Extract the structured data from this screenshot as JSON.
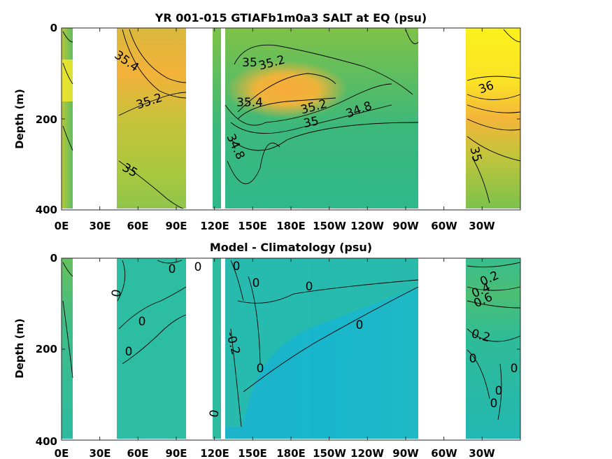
{
  "chart_data": [
    {
      "type": "heatmap",
      "title": "YR 001-015 GTIAFb1m0a3 SALT at EQ (psu)",
      "ylabel": "Depth (m)",
      "xlabel": "",
      "xticks": [
        "0E",
        "30E",
        "60E",
        "90E",
        "120E",
        "150E",
        "180E",
        "150W",
        "120W",
        "90W",
        "60W",
        "30W"
      ],
      "yticks": [
        "0",
        "200",
        "400"
      ],
      "xlim": [
        0,
        360
      ],
      "ylim": [
        0,
        400
      ],
      "grid": false,
      "colors": {
        "low": "#1fb3b0",
        "mid": "#3cb87b",
        "green_yellow": "#a5c83a",
        "orange": "#f6b43a",
        "yellow": "#fbf01d"
      },
      "contour_labels": [
        {
          "text": "35.4",
          "lon": 45,
          "depth": 90
        },
        {
          "text": "35.2",
          "lon": 60,
          "depth": 160
        },
        {
          "text": "35",
          "lon": 45,
          "depth": 315
        },
        {
          "text": "35",
          "lon": 134,
          "depth": 75
        },
        {
          "text": "35.2",
          "lon": 149,
          "depth": 80
        },
        {
          "text": "35.4",
          "lon": 134,
          "depth": 160
        },
        {
          "text": "35.2",
          "lon": 180,
          "depth": 175
        },
        {
          "text": "35",
          "lon": 177,
          "depth": 205
        },
        {
          "text": "34.8",
          "lon": 210,
          "depth": 185
        },
        {
          "text": "34.8",
          "lon": 125,
          "depth": 270
        },
        {
          "text": "36",
          "lon": 300,
          "depth": 130
        },
        {
          "text": "35",
          "lon": 291,
          "depth": 280
        }
      ]
    },
    {
      "type": "heatmap",
      "title": "Model - Climatology (psu)",
      "ylabel": "Depth (m)",
      "xlabel": "",
      "xticks": [
        "0E",
        "30E",
        "60E",
        "90E",
        "120E",
        "150E",
        "180E",
        "150W",
        "120W",
        "90W",
        "60W",
        "30W"
      ],
      "yticks": [
        "0",
        "200",
        "400"
      ],
      "xlim": [
        0,
        360
      ],
      "ylim": [
        0,
        400
      ],
      "grid": false,
      "colors": {
        "low": "#15b9c7",
        "mid": "#2dbd9c",
        "positive": "#54bf6d"
      },
      "contour_labels": [
        {
          "text": "0",
          "lon": 78,
          "depth": 25
        },
        {
          "text": "0",
          "lon": 32,
          "depth": 75
        },
        {
          "text": "0",
          "lon": 47,
          "depth": 140
        },
        {
          "text": "0",
          "lon": 40,
          "depth": 205
        },
        {
          "text": "0",
          "lon": 110,
          "depth": 15
        },
        {
          "text": "0",
          "lon": 124,
          "depth": 55
        },
        {
          "text": "0",
          "lon": 155,
          "depth": 60
        },
        {
          "text": "0",
          "lon": 195,
          "depth": 65
        },
        {
          "text": "0",
          "lon": 183,
          "depth": 145
        },
        {
          "text": "0",
          "lon": 136,
          "depth": 240
        },
        {
          "text": "0",
          "lon": 114,
          "depth": 340
        },
        {
          "text": "-0.2",
          "lon": 120,
          "depth": 195
        },
        {
          "text": "0.2",
          "lon": 300,
          "depth": 50
        },
        {
          "text": "0.4",
          "lon": 300,
          "depth": 80
        },
        {
          "text": "0.6",
          "lon": 300,
          "depth": 97
        },
        {
          "text": "0.2",
          "lon": 290,
          "depth": 170
        },
        {
          "text": "0",
          "lon": 288,
          "depth": 220
        },
        {
          "text": "0",
          "lon": 325,
          "depth": 240
        },
        {
          "text": "0",
          "lon": 305,
          "depth": 280
        },
        {
          "text": "0",
          "lon": 305,
          "depth": 310
        }
      ]
    }
  ]
}
